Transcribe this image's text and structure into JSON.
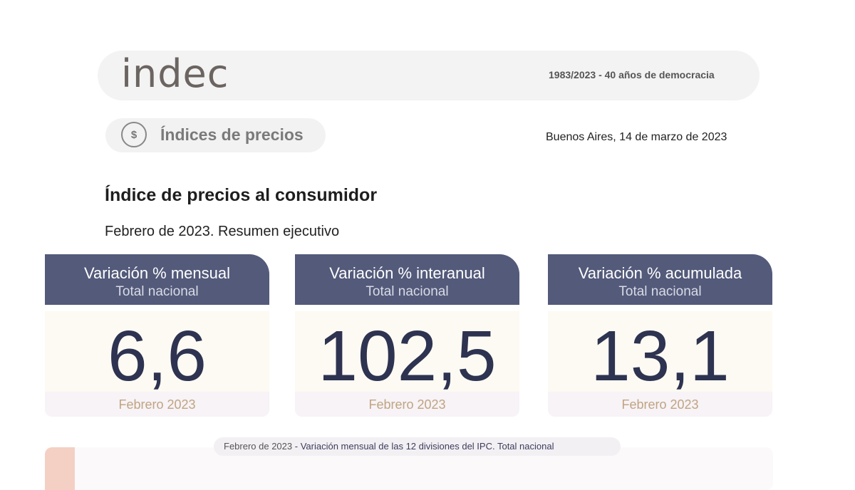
{
  "header": {
    "logo": "indec",
    "tagline": "1983/2023 - 40 años de democracia"
  },
  "section": {
    "icon": "price-tag-dollar-icon",
    "icon_glyph": "$",
    "title": "Índices de precios",
    "place_date": "Buenos Aires, 14 de marzo de 2023"
  },
  "report": {
    "title": "Índice de precios al consumidor",
    "subtitle": "Febrero de 2023. Resumen ejecutivo"
  },
  "cards": [
    {
      "title": "Variación % mensual",
      "subtitle": "Total nacional",
      "value": "6,6",
      "period": "Febrero 2023"
    },
    {
      "title": "Variación % interanual",
      "subtitle": "Total nacional",
      "value": "102,5",
      "period": "Febrero 2023"
    },
    {
      "title": "Variación % acumulada",
      "subtitle": "Total nacional",
      "value": "13,1",
      "period": "Febrero 2023"
    }
  ],
  "caption": {
    "period": "Febrero de 2023",
    "separator": " - ",
    "text": "Variación mensual de las 12 divisiones del IPC. Total nacional"
  },
  "colors": {
    "card_header": "#535a7a",
    "value": "#2d3350",
    "period": "#c0a483",
    "strip": "#f4d0c4"
  }
}
